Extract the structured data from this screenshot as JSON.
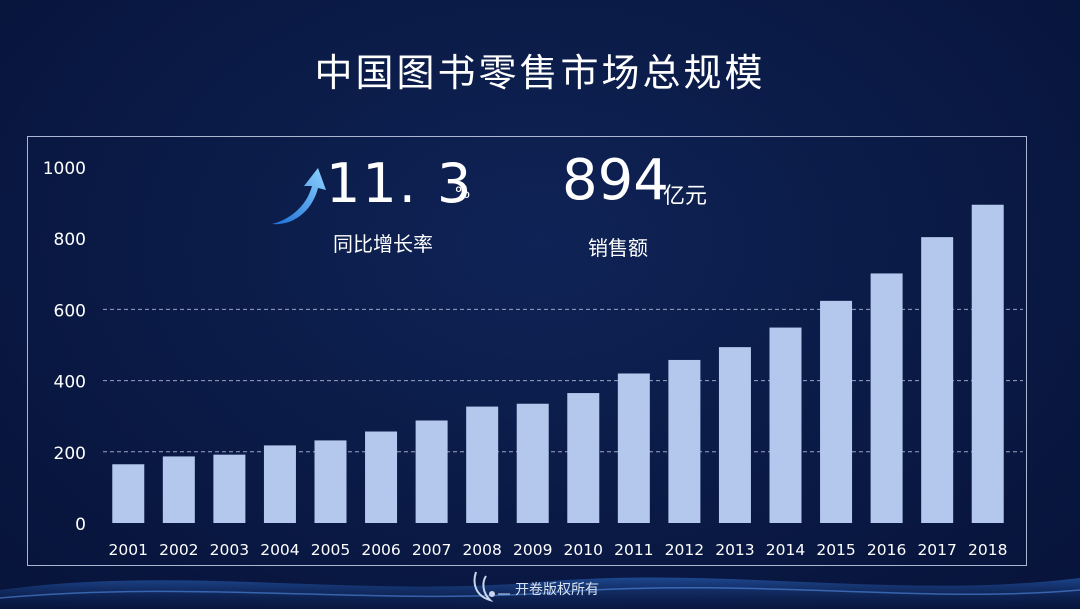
{
  "header": {
    "title": "中国图书零售市场总规模"
  },
  "stats": {
    "growth_value": "11. 3",
    "growth_unit": "%",
    "growth_label": "同比增长率",
    "sales_value": "894",
    "sales_unit": "亿元",
    "sales_label": "销售额"
  },
  "footer": {
    "text": "开卷版权所有"
  },
  "colors": {
    "bar": "#b4c7ec",
    "background": "#0a1a45",
    "grid": "#c8d2eb"
  },
  "chart_data": {
    "type": "bar",
    "categories": [
      "2001",
      "2002",
      "2003",
      "2004",
      "2005",
      "2006",
      "2007",
      "2008",
      "2009",
      "2010",
      "2011",
      "2012",
      "2013",
      "2014",
      "2015",
      "2016",
      "2017",
      "2018"
    ],
    "values": [
      165,
      187,
      192,
      218,
      232,
      257,
      288,
      327,
      335,
      365,
      420,
      458,
      494,
      549,
      624,
      701,
      803,
      894
    ],
    "ylim": [
      0,
      1000
    ],
    "yticks": [
      "0",
      "200",
      "400",
      "600",
      "800",
      "1000"
    ],
    "gridlines": [
      200,
      400,
      600
    ],
    "grid": "dashed horizontal",
    "title": "中国图书零售市场总规模"
  }
}
